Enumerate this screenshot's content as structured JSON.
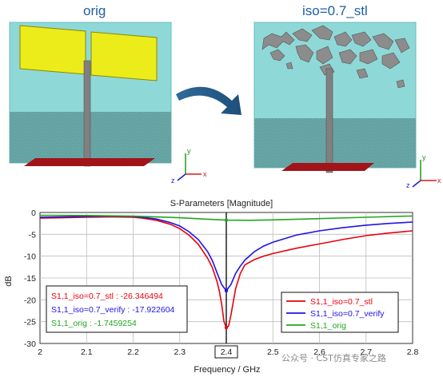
{
  "panels": {
    "left_title": "orig",
    "right_title": "iso=0.7_stl"
  },
  "chart_data": {
    "type": "line",
    "title": "S-Parameters [Magnitude]",
    "xlabel": "Frequency / GHz",
    "ylabel": "dB",
    "xlim": [
      2.0,
      2.8
    ],
    "ylim": [
      -30,
      0
    ],
    "xticks": [
      "2",
      "2.1",
      "2.2",
      "2.3",
      "2.4",
      "2.5",
      "2.6",
      "2.7",
      "2.8"
    ],
    "yticks": [
      "0",
      "-5",
      "-10",
      "-15",
      "-20",
      "-25",
      "-30"
    ],
    "marker_x": 2.4,
    "marker_label": "2.4",
    "grid": true,
    "legend_position": "bottom-right",
    "series": [
      {
        "name": "S1,1_iso=0.7_stl",
        "color": "#e8000b",
        "x": [
          2.0,
          2.05,
          2.1,
          2.15,
          2.2,
          2.22,
          2.25,
          2.28,
          2.3,
          2.32,
          2.34,
          2.36,
          2.37,
          2.38,
          2.385,
          2.39,
          2.395,
          2.4,
          2.405,
          2.41,
          2.42,
          2.43,
          2.44,
          2.46,
          2.48,
          2.5,
          2.55,
          2.6,
          2.65,
          2.7,
          2.75,
          2.8
        ],
        "y": [
          -1.3,
          -1.2,
          -1.1,
          -1.0,
          -1.1,
          -1.3,
          -1.8,
          -2.7,
          -3.7,
          -5.2,
          -7.3,
          -10.5,
          -12.6,
          -15.8,
          -18.0,
          -21.0,
          -25.0,
          -26.35,
          -26.0,
          -23.5,
          -17.5,
          -14.0,
          -12.0,
          -10.8,
          -10.0,
          -9.4,
          -8.2,
          -7.2,
          -6.2,
          -5.3,
          -4.7,
          -4.2
        ]
      },
      {
        "name": "S1,1_iso=0.7_verify",
        "color": "#1f14e6",
        "x": [
          2.0,
          2.05,
          2.1,
          2.15,
          2.2,
          2.22,
          2.25,
          2.28,
          2.3,
          2.32,
          2.34,
          2.36,
          2.37,
          2.38,
          2.39,
          2.4,
          2.41,
          2.42,
          2.43,
          2.44,
          2.46,
          2.48,
          2.5,
          2.55,
          2.6,
          2.65,
          2.7,
          2.75,
          2.8
        ],
        "y": [
          -1.1,
          -1.0,
          -0.9,
          -0.8,
          -0.9,
          -1.1,
          -1.5,
          -2.3,
          -3.1,
          -4.4,
          -6.2,
          -9.0,
          -11.0,
          -13.8,
          -16.5,
          -17.92,
          -16.5,
          -14.0,
          -12.3,
          -10.9,
          -9.0,
          -7.7,
          -6.8,
          -5.2,
          -4.2,
          -3.5,
          -2.9,
          -2.5,
          -2.2
        ]
      },
      {
        "name": "S1,1_orig",
        "color": "#1fa81f",
        "x": [
          2.0,
          2.1,
          2.2,
          2.3,
          2.35,
          2.4,
          2.45,
          2.5,
          2.6,
          2.7,
          2.8
        ],
        "y": [
          -0.65,
          -0.7,
          -0.85,
          -1.2,
          -1.5,
          -1.75,
          -1.8,
          -1.7,
          -1.4,
          -1.1,
          -0.8
        ]
      }
    ],
    "annotations": [
      {
        "text": "S1,1_iso=0.7_stl : -26.346494",
        "color": "#e8000b"
      },
      {
        "text": "S1,1_iso=0.7_verify : -17.922604",
        "color": "#1f14e6"
      },
      {
        "text": "S1,1_orig : -1.7459254",
        "color": "#1fa81f"
      }
    ]
  },
  "watermark": "公众号 · CST仿真专家之路",
  "colors": {
    "substrate": "#8fd8d8",
    "patch": "#ecec1a",
    "feed": "#808080",
    "ground": "#a0141a"
  }
}
